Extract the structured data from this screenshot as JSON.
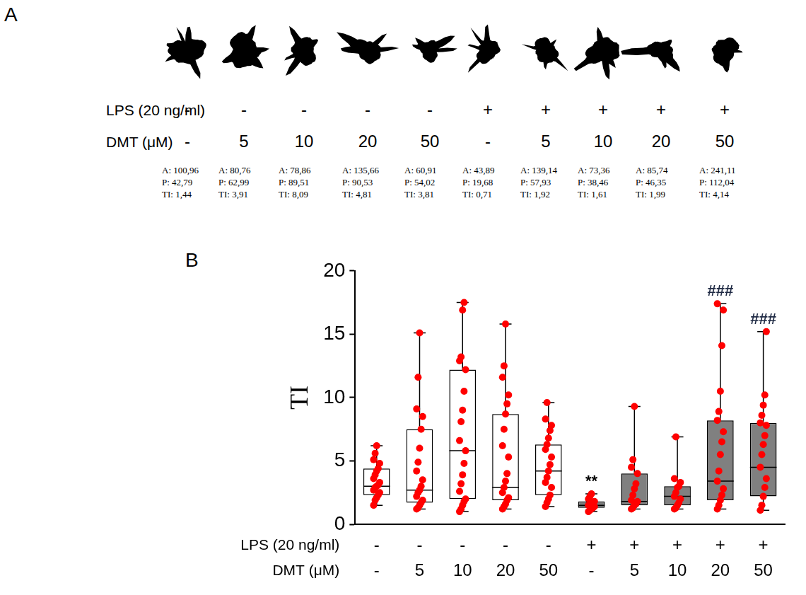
{
  "panel_a": {
    "panel_label": "A",
    "row_labels": [
      "LPS (20 ng/ml)",
      "DMT (μM)"
    ],
    "columns": [
      {
        "lps": "-",
        "dmt": "-",
        "measures": [
          "A: 100,96",
          "P: 42,79",
          "TI: 1,44"
        ]
      },
      {
        "lps": "-",
        "dmt": "5",
        "measures": [
          "A: 80,76",
          "P: 62,99",
          "TI: 3,91"
        ]
      },
      {
        "lps": "-",
        "dmt": "10",
        "measures": [
          "A: 78,86",
          "P: 89,51",
          "TI: 8,09"
        ]
      },
      {
        "lps": "-",
        "dmt": "20",
        "measures": [
          "A: 135,66",
          "P: 90,53",
          "TI: 4,81"
        ]
      },
      {
        "lps": "-",
        "dmt": "50",
        "measures": [
          "A: 60,91",
          "P: 54,02",
          "TI: 3,81"
        ]
      },
      {
        "lps": "+",
        "dmt": "-",
        "measures": [
          "A: 43,89",
          "P: 19,68",
          "TI: 0,71"
        ]
      },
      {
        "lps": "+",
        "dmt": "5",
        "measures": [
          "A: 139,14",
          "P: 57,93",
          "TI: 1,92"
        ]
      },
      {
        "lps": "+",
        "dmt": "10",
        "measures": [
          "A: 73,36",
          "P: 38,46",
          "TI: 1,61"
        ]
      },
      {
        "lps": "+",
        "dmt": "20",
        "measures": [
          "A: 85,74",
          "P: 46,35",
          "TI: 1,99"
        ]
      },
      {
        "lps": "+",
        "dmt": "50",
        "measures": [
          "A: 241,11",
          "P: 112,04",
          "TI: 4,14"
        ]
      }
    ]
  },
  "chart_data": {
    "type": "box",
    "panel_label": "B",
    "y_label": "TI",
    "row_labels": [
      "LPS (20 ng/ml)",
      "DMT (μM)"
    ],
    "categories": [
      [
        "-",
        "-"
      ],
      [
        "-",
        "5"
      ],
      [
        "-",
        "10"
      ],
      [
        "-",
        "20"
      ],
      [
        "-",
        "50"
      ],
      [
        "+",
        "-"
      ],
      [
        "+",
        "5"
      ],
      [
        "+",
        "10"
      ],
      [
        "+",
        "20"
      ],
      [
        "+",
        "50"
      ]
    ],
    "boxes": [
      {
        "min": 1.5,
        "q1": 2.3,
        "median": 3.0,
        "q3": 4.4,
        "max": 6.2
      },
      {
        "min": 1.2,
        "q1": 1.7,
        "median": 2.7,
        "q3": 7.5,
        "max": 15.1
      },
      {
        "min": 1.0,
        "q1": 2.0,
        "median": 5.8,
        "q3": 12.2,
        "max": 17.5
      },
      {
        "min": 1.2,
        "q1": 1.9,
        "median": 2.9,
        "q3": 8.7,
        "max": 15.8
      },
      {
        "min": 1.4,
        "q1": 2.3,
        "median": 4.2,
        "q3": 6.3,
        "max": 9.6
      },
      {
        "min": 1.0,
        "q1": 1.3,
        "median": 1.5,
        "q3": 1.8,
        "max": 2.4
      },
      {
        "min": 1.2,
        "q1": 1.5,
        "median": 1.8,
        "q3": 4.0,
        "max": 9.3
      },
      {
        "min": 1.2,
        "q1": 1.5,
        "median": 2.2,
        "q3": 3.0,
        "max": 6.9
      },
      {
        "min": 1.2,
        "q1": 1.9,
        "median": 3.4,
        "q3": 8.2,
        "max": 17.4
      },
      {
        "min": 1.1,
        "q1": 2.2,
        "median": 4.5,
        "q3": 8.0,
        "max": 15.2
      }
    ],
    "points": [
      [
        1.5,
        1.9,
        2.1,
        2.3,
        2.5,
        2.7,
        2.9,
        3.0,
        3.1,
        3.3,
        3.6,
        3.9,
        4.2,
        4.4,
        4.8,
        5.1,
        5.6,
        6.2
      ],
      [
        1.2,
        1.3,
        1.5,
        1.7,
        1.9,
        2.2,
        2.5,
        2.7,
        3.0,
        3.5,
        4.2,
        4.9,
        6.0,
        7.5,
        8.5,
        9.1,
        11.6,
        15.1
      ],
      [
        1.0,
        1.2,
        1.5,
        1.8,
        2.0,
        2.6,
        3.2,
        3.9,
        4.8,
        5.8,
        6.6,
        8.1,
        9.0,
        10.5,
        12.2,
        12.9,
        13.2,
        16.9,
        17.5
      ],
      [
        1.2,
        1.4,
        1.6,
        1.9,
        2.1,
        2.5,
        2.9,
        3.4,
        4.0,
        5.3,
        6.2,
        7.5,
        8.7,
        9.5,
        10.2,
        11.6,
        12.5,
        15.8
      ],
      [
        1.4,
        1.7,
        2.0,
        2.3,
        2.9,
        3.3,
        3.7,
        4.2,
        4.7,
        5.3,
        5.9,
        6.3,
        6.8,
        7.4,
        7.8,
        8.3,
        9.6
      ],
      [
        1.0,
        1.1,
        1.2,
        1.3,
        1.4,
        1.5,
        1.5,
        1.6,
        1.7,
        1.8,
        2.0,
        2.2,
        2.4
      ],
      [
        1.2,
        1.3,
        1.5,
        1.6,
        1.8,
        1.9,
        2.3,
        2.8,
        3.2,
        4.0,
        4.5,
        5.1,
        9.3
      ],
      [
        1.2,
        1.3,
        1.5,
        1.7,
        2.0,
        2.2,
        2.5,
        2.9,
        3.0,
        3.3,
        3.6,
        6.9
      ],
      [
        1.2,
        1.5,
        1.9,
        2.3,
        2.8,
        3.4,
        4.2,
        5.5,
        6.5,
        7.3,
        8.2,
        8.9,
        10.5,
        14.1,
        16.9,
        17.4
      ],
      [
        1.1,
        1.5,
        2.2,
        2.9,
        3.6,
        4.5,
        5.5,
        6.3,
        7.0,
        7.8,
        8.0,
        8.6,
        9.4,
        10.2,
        15.2
      ]
    ],
    "colors": [
      "#ffffff",
      "#ffffff",
      "#ffffff",
      "#ffffff",
      "#ffffff",
      "#808080",
      "#808080",
      "#808080",
      "#808080",
      "#808080"
    ],
    "point_color": "#ff0000",
    "annotations": [
      {
        "category": 5,
        "text": "**"
      },
      {
        "category": 8,
        "text": "###"
      },
      {
        "category": 9,
        "text": "###"
      }
    ],
    "ylim": [
      0,
      20
    ],
    "yticks": [
      0,
      5,
      10,
      15,
      20
    ],
    "grid": false
  }
}
